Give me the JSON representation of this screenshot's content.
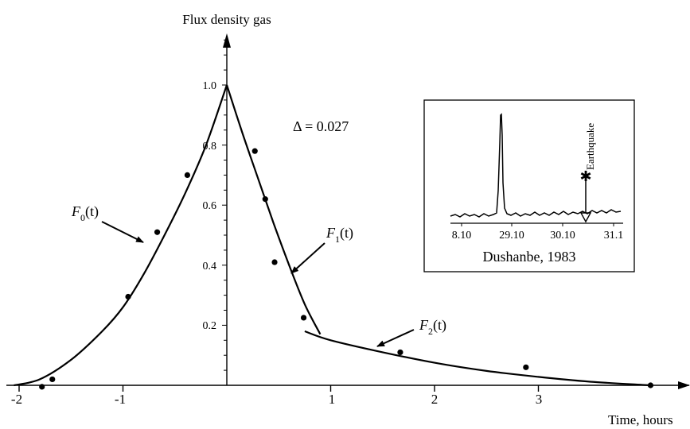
{
  "chart_data": {
    "type": "scatter",
    "ylabel": "Flux density gas",
    "xlabel": "Time, hours",
    "x_ticks": [
      "-2",
      "-1",
      "1",
      "2",
      "3"
    ],
    "y_ticks": [
      "0.2",
      "0.4",
      "0.6",
      "0.8",
      "1.0"
    ],
    "xlim": [
      -2.2,
      4.5
    ],
    "ylim": [
      0,
      1.17
    ],
    "grid": false,
    "delta_label": "Δ = 0.027",
    "series": [
      {
        "name": "F0(t)",
        "label_main": "F",
        "label_sub": "0",
        "label_tail": "(t)",
        "kind": "line",
        "points": [
          [
            -2.05,
            0.0
          ],
          [
            -1.8,
            0.02
          ],
          [
            -1.5,
            0.085
          ],
          [
            -1.2,
            0.18
          ],
          [
            -1.0,
            0.26
          ],
          [
            -0.8,
            0.37
          ],
          [
            -0.6,
            0.5
          ],
          [
            -0.4,
            0.64
          ],
          [
            -0.2,
            0.8
          ],
          [
            0.0,
            1.0
          ]
        ]
      },
      {
        "name": "F1(t)",
        "label_main": "F",
        "label_sub": "1",
        "label_tail": "(t)",
        "kind": "line",
        "points": [
          [
            0.0,
            1.0
          ],
          [
            0.15,
            0.84
          ],
          [
            0.3,
            0.69
          ],
          [
            0.45,
            0.54
          ],
          [
            0.6,
            0.4
          ],
          [
            0.75,
            0.27
          ],
          [
            0.9,
            0.17
          ]
        ]
      },
      {
        "name": "F2(t)",
        "label_main": "F",
        "label_sub": "2",
        "label_tail": "(t)",
        "kind": "line",
        "points": [
          [
            0.75,
            0.18
          ],
          [
            1.0,
            0.15
          ],
          [
            1.5,
            0.11
          ],
          [
            2.0,
            0.075
          ],
          [
            2.5,
            0.048
          ],
          [
            3.0,
            0.028
          ],
          [
            3.5,
            0.012
          ],
          [
            4.08,
            0.0
          ]
        ]
      },
      {
        "name": "observations",
        "kind": "scatter",
        "points": [
          [
            -1.78,
            -0.005
          ],
          [
            -1.68,
            0.02
          ],
          [
            -0.95,
            0.295
          ],
          [
            -0.67,
            0.51
          ],
          [
            -0.38,
            0.7
          ],
          [
            0.27,
            0.78
          ],
          [
            0.37,
            0.62
          ],
          [
            0.46,
            0.41
          ],
          [
            0.74,
            0.225
          ],
          [
            1.67,
            0.11
          ],
          [
            2.88,
            0.06
          ],
          [
            4.08,
            0.0
          ]
        ]
      }
    ]
  },
  "inset": {
    "x_ticks": [
      "8.10",
      "29.10",
      "30.10",
      "31.1"
    ],
    "caption": "Dushanbe, 1983",
    "event_label": "Earthquake"
  }
}
